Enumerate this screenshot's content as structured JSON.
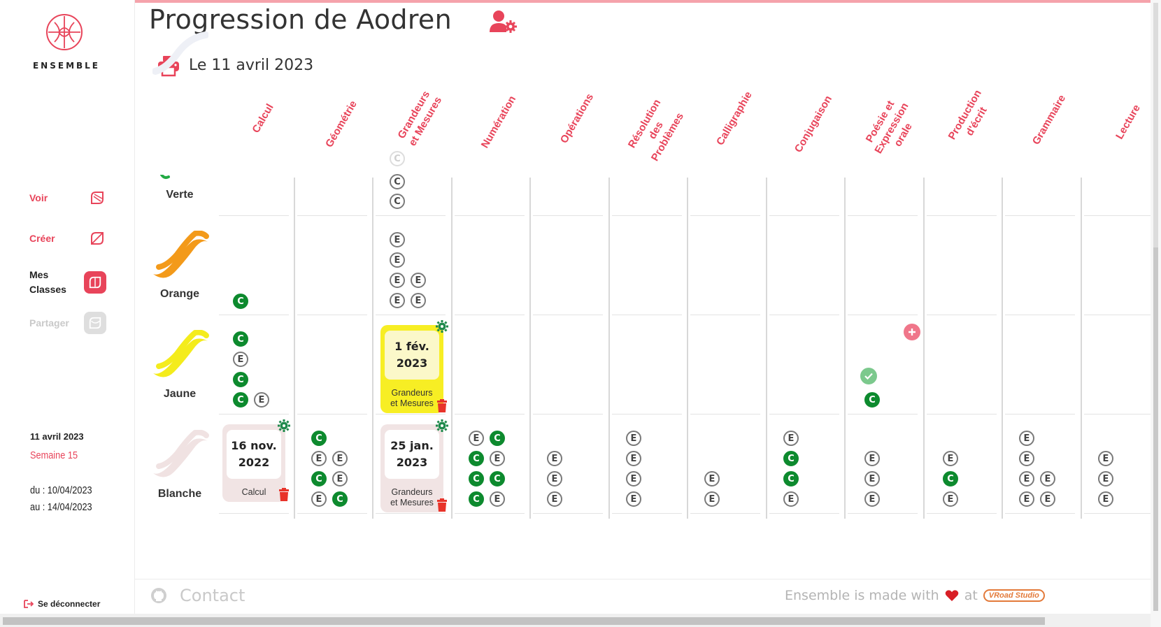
{
  "brand": {
    "name": "ENSEMBLE"
  },
  "nav": {
    "voir": "Voir",
    "creer": "Créer",
    "mes_classes": "Mes Classes",
    "partager": "Partager"
  },
  "sidebar_info": {
    "date": "11 avril 2023",
    "week": "Semaine 15",
    "from": "du : 10/04/2023",
    "to": "au : 14/04/2023",
    "logout": "Se déconnecter"
  },
  "header": {
    "title": "Progression de Aodren",
    "date": "Le 11 avril 2023"
  },
  "columns": [
    "Calcul",
    "Géométrie",
    "Grandeurs\net Mesures",
    "Numération",
    "Opérations",
    "Résolution\ndes\nProblèmes",
    "Calligraphie",
    "Conjugaison",
    "Poésie et\nExpression\norale",
    "Production\nd'écrit",
    "Grammaire",
    "Lecture"
  ],
  "levels": [
    "Verte",
    "Orange",
    "Jaune",
    "Blanche"
  ],
  "level_colors": {
    "Verte": "#22aa44",
    "Orange": "#f39a1a",
    "Jaune": "#f4ec1c",
    "Blanche": "#f0e2e2"
  },
  "badge_letters": {
    "E": "E",
    "C": "C"
  },
  "cards": [
    {
      "date": "16 nov.\n2022",
      "subject": "Calcul"
    },
    {
      "date": "1 fév.\n2023",
      "subject": "Grandeurs\net Mesures"
    },
    {
      "date": "25 jan.\n2023",
      "subject": "Grandeurs\net Mesures"
    }
  ],
  "footer": {
    "contact": "Contact",
    "made_with": "Ensemble is made with",
    "at": "at",
    "studio": "VRoad Studio"
  },
  "accent_color": "#e8445a"
}
